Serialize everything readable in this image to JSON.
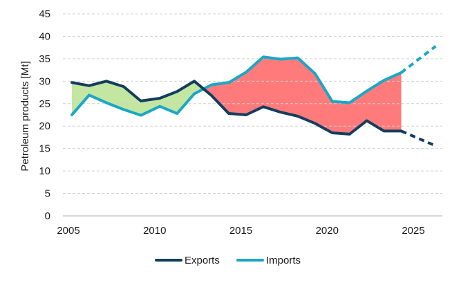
{
  "chart_data": {
    "type": "line",
    "title": "",
    "xlabel": "",
    "ylabel": "Petroleum products [Mt]",
    "xlim": [
      2005,
      2027.2
    ],
    "ylim": [
      0,
      45
    ],
    "yticks": [
      0,
      5,
      10,
      15,
      20,
      25,
      30,
      35,
      40,
      45
    ],
    "xticks": [
      2005,
      2010,
      2015,
      2020,
      2025
    ],
    "grid": "horizontal-dashed",
    "legend_position": "bottom-center",
    "colors": {
      "exports": "#123e5e",
      "imports": "#1aa7c7",
      "surplus_fill": "#c3e6a1",
      "deficit_fill": "#ff7b7b",
      "grid": "#d0d0d0",
      "axis": "#b0b0b0",
      "text": "#1a1a1a"
    },
    "series": [
      {
        "name": "Exports",
        "key": "exports",
        "x": [
          2005.2,
          2006.2,
          2007.2,
          2008.2,
          2009.2,
          2010.3,
          2011.3,
          2012.3,
          2013.3,
          2014.3,
          2015.3,
          2016.3,
          2017.3,
          2018.3,
          2019.3,
          2020.3,
          2021.3,
          2022.3,
          2023.3,
          2024.3
        ],
        "values": [
          29.7,
          29.0,
          30.0,
          28.8,
          25.6,
          26.2,
          27.7,
          30.0,
          26.8,
          22.8,
          22.5,
          24.3,
          23.1,
          22.2,
          20.6,
          18.5,
          18.2,
          21.2,
          18.9,
          18.9
        ],
        "projection_x": [
          2024.3,
          2026.3
        ],
        "projection_values": [
          18.9,
          15.6
        ]
      },
      {
        "name": "Imports",
        "key": "imports",
        "x": [
          2005.2,
          2006.2,
          2007.2,
          2008.2,
          2009.2,
          2010.3,
          2011.3,
          2012.3,
          2013.3,
          2014.3,
          2015.3,
          2016.3,
          2017.3,
          2018.3,
          2019.3,
          2020.3,
          2021.3,
          2022.3,
          2023.3,
          2024.3
        ],
        "values": [
          22.5,
          26.9,
          25.2,
          23.7,
          22.4,
          24.4,
          22.8,
          27.2,
          29.2,
          29.7,
          32.0,
          35.4,
          34.9,
          35.2,
          31.7,
          25.5,
          25.2,
          27.8,
          30.2,
          31.9
        ],
        "projection_x": [
          2024.3,
          2026.3
        ],
        "projection_values": [
          31.9,
          37.8
        ]
      }
    ]
  }
}
